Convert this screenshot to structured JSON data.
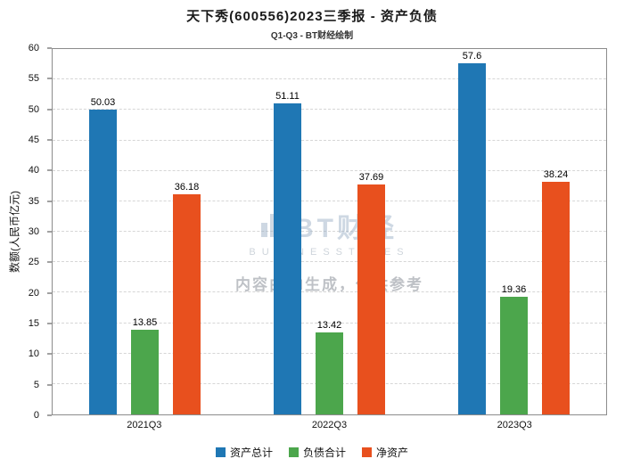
{
  "title": "天下秀(600556)2023三季报 - 资产负债",
  "subtitle": "Q1-Q3 - BT财经绘制",
  "ylabel": "数额(人民币亿元)",
  "watermark": {
    "brand": "BT财经",
    "brand_sub": "BUSINESSTIMES",
    "note": "内容由AI生成，仅供参考"
  },
  "chart_data": {
    "type": "bar",
    "title": "天下秀(600556)2023三季报 - 资产负债",
    "subtitle": "Q1-Q3 - BT财经绘制",
    "xlabel": "",
    "ylabel": "数额(人民币亿元)",
    "categories": [
      "2021Q3",
      "2022Q3",
      "2023Q3"
    ],
    "series": [
      {
        "name": "资产总计",
        "color": "#1f77b4",
        "values": [
          50.03,
          51.11,
          57.6
        ]
      },
      {
        "name": "负债合计",
        "color": "#4ca64c",
        "values": [
          13.85,
          13.42,
          19.36
        ]
      },
      {
        "name": "净资产",
        "color": "#e8501e",
        "values": [
          36.18,
          37.69,
          38.24
        ]
      }
    ],
    "ylim": [
      0,
      60
    ],
    "ytick_step": 5,
    "grid": true,
    "legend_position": "bottom"
  }
}
